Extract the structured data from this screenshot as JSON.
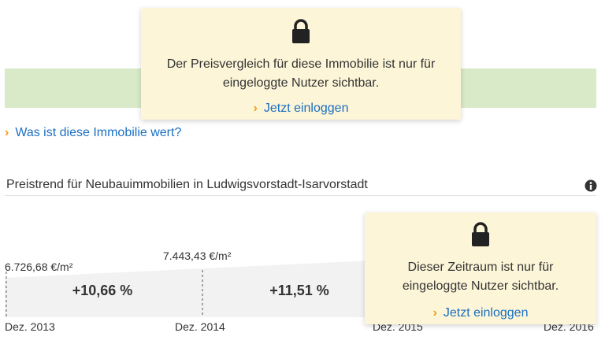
{
  "compare_overlay": {
    "message": "Der Preisvergleich für diese Immobilie ist nur für eingeloggte Nutzer sichtbar.",
    "link": "Jetzt einloggen"
  },
  "value_link": "Was ist diese Immobilie wert?",
  "trend": {
    "heading": "Preistrend für Neubauimmobilien in Ludwigsvorstadt-Isarvorstadt",
    "prices": [
      "6.726,68 €/m²",
      "7.443,43 €/m²"
    ],
    "changes": [
      "+10,66 %",
      "+11,51 %"
    ],
    "dates": [
      "Dez. 2013",
      "Dez. 2014",
      "Dez. 2015",
      "Dez. 2016"
    ],
    "overlay": {
      "message": "Dieser Zeitraum ist nur für eingeloggte Nutzer sichtbar.",
      "link": "Jetzt einloggen"
    }
  }
}
